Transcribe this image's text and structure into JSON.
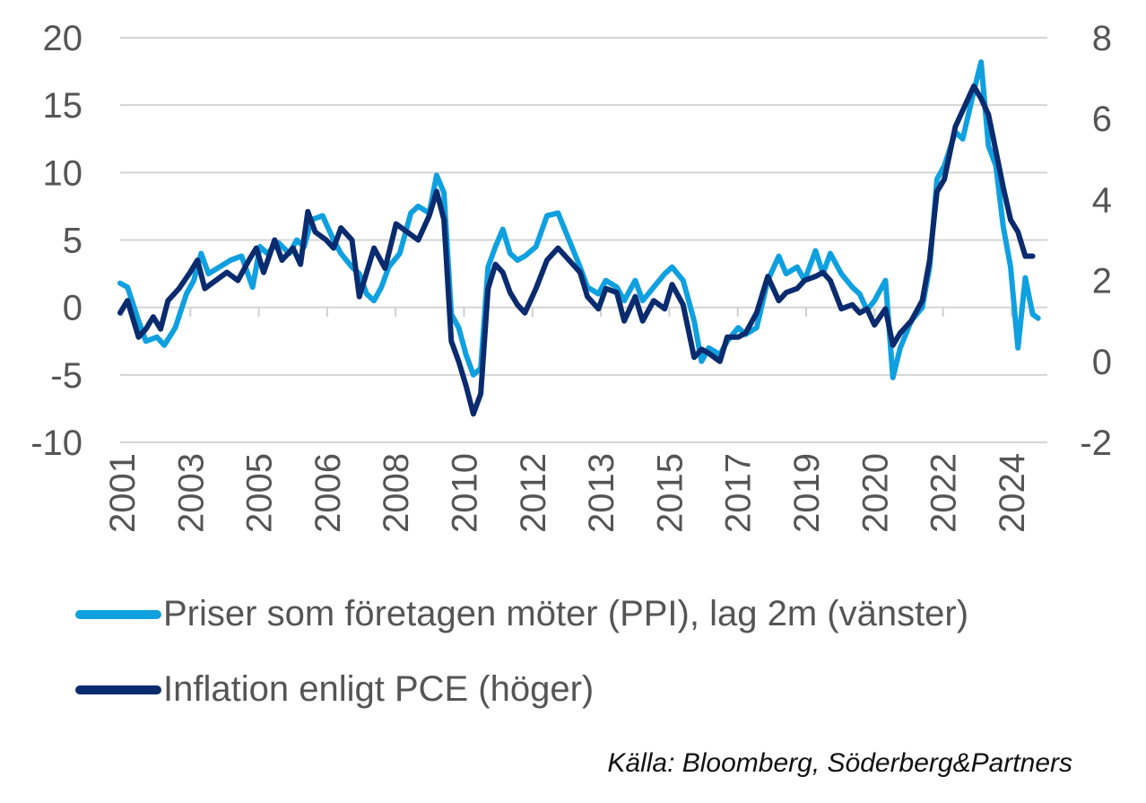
{
  "chart_data": {
    "type": "line",
    "title": "",
    "x_tick_labels": [
      "2001",
      "2003",
      "2005",
      "2006",
      "2008",
      "2010",
      "2012",
      "2013",
      "2015",
      "2017",
      "2019",
      "2020",
      "2022",
      "2024"
    ],
    "y_left": {
      "ylim": [
        -10,
        20
      ],
      "ticks": [
        "20",
        "15",
        "10",
        "5",
        "0",
        "-5",
        "-10"
      ]
    },
    "y_right": {
      "ylim": [
        -2,
        8
      ],
      "ticks": [
        "8",
        "6",
        "4",
        "2",
        "0",
        "-2"
      ]
    },
    "grid": "horizontal",
    "legend_placement": "bottom",
    "series": [
      {
        "name": "Priser som företagen möter (PPI), lag 2m (vänster)",
        "axis": "left",
        "color": "#0fa0e0",
        "points": [
          [
            2001.0,
            1.8
          ],
          [
            2001.2,
            1.5
          ],
          [
            2001.5,
            -1.0
          ],
          [
            2001.7,
            -2.5
          ],
          [
            2002.0,
            -2.2
          ],
          [
            2002.2,
            -2.8
          ],
          [
            2002.5,
            -1.5
          ],
          [
            2002.8,
            1.0
          ],
          [
            2003.0,
            2.0
          ],
          [
            2003.2,
            4.0
          ],
          [
            2003.4,
            2.5
          ],
          [
            2003.7,
            3.0
          ],
          [
            2004.0,
            3.5
          ],
          [
            2004.3,
            3.8
          ],
          [
            2004.6,
            1.5
          ],
          [
            2004.8,
            4.5
          ],
          [
            2005.0,
            4.0
          ],
          [
            2005.3,
            4.8
          ],
          [
            2005.6,
            4.0
          ],
          [
            2005.8,
            5.0
          ],
          [
            2006.0,
            4.5
          ],
          [
            2006.2,
            6.5
          ],
          [
            2006.5,
            6.8
          ],
          [
            2006.8,
            5.0
          ],
          [
            2007.0,
            4.0
          ],
          [
            2007.3,
            3.0
          ],
          [
            2007.5,
            2.5
          ],
          [
            2007.7,
            1.0
          ],
          [
            2007.9,
            0.5
          ],
          [
            2008.1,
            1.5
          ],
          [
            2008.3,
            3.0
          ],
          [
            2008.6,
            4.0
          ],
          [
            2008.9,
            7.0
          ],
          [
            2009.1,
            7.5
          ],
          [
            2009.4,
            7.0
          ],
          [
            2009.6,
            9.8
          ],
          [
            2009.8,
            8.5
          ],
          [
            2010.0,
            -0.5
          ],
          [
            2010.2,
            -1.5
          ],
          [
            2010.4,
            -3.5
          ],
          [
            2010.6,
            -5.0
          ],
          [
            2010.8,
            -4.5
          ],
          [
            2011.0,
            3.0
          ],
          [
            2011.2,
            4.5
          ],
          [
            2011.4,
            5.8
          ],
          [
            2011.6,
            4.0
          ],
          [
            2011.8,
            3.5
          ],
          [
            2012.0,
            3.8
          ],
          [
            2012.3,
            4.5
          ],
          [
            2012.6,
            6.8
          ],
          [
            2012.9,
            7.0
          ],
          [
            2013.2,
            5.0
          ],
          [
            2013.5,
            3.0
          ],
          [
            2013.7,
            1.5
          ],
          [
            2014.0,
            1.0
          ],
          [
            2014.2,
            2.0
          ],
          [
            2014.5,
            1.5
          ],
          [
            2014.7,
            0.5
          ],
          [
            2015.0,
            2.0
          ],
          [
            2015.2,
            0.5
          ],
          [
            2015.5,
            1.5
          ],
          [
            2015.8,
            2.5
          ],
          [
            2016.0,
            3.0
          ],
          [
            2016.3,
            2.0
          ],
          [
            2016.6,
            -1.0
          ],
          [
            2016.8,
            -4.0
          ],
          [
            2017.0,
            -3.0
          ],
          [
            2017.3,
            -3.5
          ],
          [
            2017.5,
            -2.5
          ],
          [
            2017.8,
            -1.5
          ],
          [
            2018.0,
            -2.0
          ],
          [
            2018.3,
            -1.5
          ],
          [
            2018.6,
            2.0
          ],
          [
            2018.9,
            3.8
          ],
          [
            2019.1,
            2.5
          ],
          [
            2019.4,
            3.0
          ],
          [
            2019.6,
            2.0
          ],
          [
            2019.9,
            4.2
          ],
          [
            2020.1,
            2.5
          ],
          [
            2020.3,
            4.0
          ],
          [
            2020.6,
            2.5
          ],
          [
            2020.9,
            1.5
          ],
          [
            2021.1,
            1.0
          ],
          [
            2021.3,
            -0.2
          ],
          [
            2021.5,
            0.5
          ],
          [
            2021.8,
            2.0
          ],
          [
            2022.0,
            -5.2
          ],
          [
            2022.2,
            -3.0
          ],
          [
            2022.5,
            -1.0
          ],
          [
            2022.8,
            0.0
          ],
          [
            2023.0,
            3.0
          ],
          [
            2023.2,
            9.5
          ],
          [
            2023.4,
            10.5
          ],
          [
            2023.7,
            13.0
          ],
          [
            2023.9,
            12.5
          ],
          [
            2024.2,
            16.0
          ],
          [
            2024.4,
            18.2
          ],
          [
            2024.6,
            12.0
          ],
          [
            2024.8,
            10.5
          ],
          [
            2025.0,
            6.0
          ],
          [
            2025.2,
            3.0
          ],
          [
            2025.4,
            -3.0
          ],
          [
            2025.6,
            2.2
          ],
          [
            2025.8,
            -0.5
          ],
          [
            2025.95,
            -0.8
          ]
        ]
      },
      {
        "name": "Inflation enligt PCE (höger)",
        "axis": "right",
        "color": "#0a2b6e",
        "points": [
          [
            2001.0,
            1.2
          ],
          [
            2001.2,
            1.5
          ],
          [
            2001.5,
            0.6
          ],
          [
            2001.7,
            0.8
          ],
          [
            2001.9,
            1.1
          ],
          [
            2002.1,
            0.8
          ],
          [
            2002.3,
            1.5
          ],
          [
            2002.6,
            1.8
          ],
          [
            2002.9,
            2.2
          ],
          [
            2003.1,
            2.5
          ],
          [
            2003.3,
            1.8
          ],
          [
            2003.6,
            2.0
          ],
          [
            2003.9,
            2.2
          ],
          [
            2004.2,
            2.0
          ],
          [
            2004.5,
            2.5
          ],
          [
            2004.7,
            2.8
          ],
          [
            2004.9,
            2.2
          ],
          [
            2005.2,
            3.0
          ],
          [
            2005.4,
            2.5
          ],
          [
            2005.7,
            2.8
          ],
          [
            2005.9,
            2.4
          ],
          [
            2006.1,
            3.7
          ],
          [
            2006.3,
            3.2
          ],
          [
            2006.6,
            3.0
          ],
          [
            2006.8,
            2.8
          ],
          [
            2007.0,
            3.3
          ],
          [
            2007.3,
            3.0
          ],
          [
            2007.5,
            1.6
          ],
          [
            2007.7,
            2.2
          ],
          [
            2007.9,
            2.8
          ],
          [
            2008.2,
            2.3
          ],
          [
            2008.5,
            3.4
          ],
          [
            2008.8,
            3.2
          ],
          [
            2009.1,
            3.0
          ],
          [
            2009.4,
            3.6
          ],
          [
            2009.6,
            4.2
          ],
          [
            2009.8,
            3.5
          ],
          [
            2010.0,
            0.5
          ],
          [
            2010.2,
            0.0
          ],
          [
            2010.4,
            -0.6
          ],
          [
            2010.6,
            -1.3
          ],
          [
            2010.8,
            -0.8
          ],
          [
            2011.0,
            1.8
          ],
          [
            2011.2,
            2.4
          ],
          [
            2011.4,
            2.2
          ],
          [
            2011.6,
            1.7
          ],
          [
            2011.8,
            1.4
          ],
          [
            2012.0,
            1.2
          ],
          [
            2012.3,
            1.8
          ],
          [
            2012.6,
            2.5
          ],
          [
            2012.9,
            2.8
          ],
          [
            2013.2,
            2.5
          ],
          [
            2013.5,
            2.2
          ],
          [
            2013.7,
            1.6
          ],
          [
            2014.0,
            1.3
          ],
          [
            2014.2,
            1.8
          ],
          [
            2014.5,
            1.7
          ],
          [
            2014.7,
            1.0
          ],
          [
            2015.0,
            1.6
          ],
          [
            2015.2,
            1.0
          ],
          [
            2015.5,
            1.5
          ],
          [
            2015.8,
            1.3
          ],
          [
            2016.0,
            1.9
          ],
          [
            2016.3,
            1.4
          ],
          [
            2016.6,
            0.1
          ],
          [
            2016.8,
            0.3
          ],
          [
            2017.0,
            0.2
          ],
          [
            2017.3,
            0.0
          ],
          [
            2017.5,
            0.6
          ],
          [
            2017.8,
            0.6
          ],
          [
            2018.0,
            0.7
          ],
          [
            2018.3,
            1.2
          ],
          [
            2018.6,
            2.1
          ],
          [
            2018.9,
            1.5
          ],
          [
            2019.1,
            1.7
          ],
          [
            2019.4,
            1.8
          ],
          [
            2019.6,
            2.0
          ],
          [
            2019.9,
            2.1
          ],
          [
            2020.1,
            2.2
          ],
          [
            2020.3,
            2.0
          ],
          [
            2020.6,
            1.3
          ],
          [
            2020.9,
            1.4
          ],
          [
            2021.1,
            1.2
          ],
          [
            2021.3,
            1.3
          ],
          [
            2021.5,
            0.9
          ],
          [
            2021.8,
            1.3
          ],
          [
            2022.0,
            0.4
          ],
          [
            2022.2,
            0.7
          ],
          [
            2022.5,
            1.0
          ],
          [
            2022.8,
            1.5
          ],
          [
            2023.0,
            2.5
          ],
          [
            2023.2,
            4.2
          ],
          [
            2023.4,
            4.5
          ],
          [
            2023.7,
            5.8
          ],
          [
            2023.9,
            6.2
          ],
          [
            2024.2,
            6.8
          ],
          [
            2024.4,
            6.5
          ],
          [
            2024.6,
            6.1
          ],
          [
            2024.8,
            5.2
          ],
          [
            2025.0,
            4.3
          ],
          [
            2025.2,
            3.5
          ],
          [
            2025.4,
            3.2
          ],
          [
            2025.6,
            2.6
          ],
          [
            2025.8,
            2.6
          ]
        ]
      }
    ]
  },
  "legend": [
    {
      "label": "Priser som företagen möter (PPI), lag 2m (vänster)",
      "color": "#0fa0e0"
    },
    {
      "label": "Inflation enligt PCE (höger)",
      "color": "#0a2b6e"
    }
  ],
  "source": "Källa: Bloomberg, Söderberg&Partners"
}
